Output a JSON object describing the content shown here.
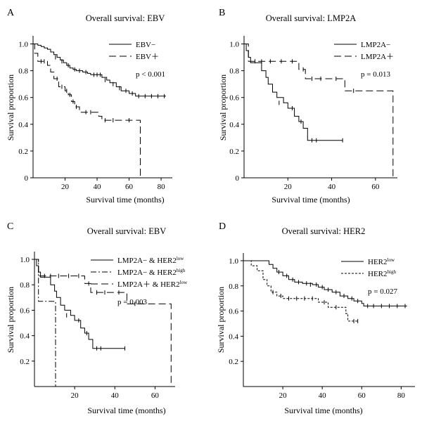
{
  "chart_data": [
    {
      "type": "line",
      "panel": "A",
      "title": "Overall survival: EBV",
      "xlabel": "Survival time (months)",
      "ylabel": "Survival proportion",
      "xlim": [
        0,
        87
      ],
      "ylim": [
        0,
        1.05
      ],
      "xticks": [
        "20",
        "40",
        "60",
        "80"
      ],
      "yticks": [
        "0",
        "0.2",
        "0.4",
        "0.6",
        "0.8",
        "1.0"
      ],
      "legend_position": "top-right",
      "annotation": "p < 0.001",
      "series": [
        {
          "name": "EBV−",
          "dash": "solid",
          "steps": [
            [
              0,
              1.0
            ],
            [
              3,
              0.99
            ],
            [
              5,
              0.98
            ],
            [
              7,
              0.97
            ],
            [
              9,
              0.96
            ],
            [
              11,
              0.94
            ],
            [
              13,
              0.92
            ],
            [
              15,
              0.9
            ],
            [
              17,
              0.88
            ],
            [
              19,
              0.86
            ],
            [
              21,
              0.84
            ],
            [
              23,
              0.82
            ],
            [
              25,
              0.81
            ],
            [
              27,
              0.8
            ],
            [
              31,
              0.79
            ],
            [
              34,
              0.78
            ],
            [
              36,
              0.77
            ],
            [
              43,
              0.75
            ],
            [
              46,
              0.73
            ],
            [
              48,
              0.71
            ],
            [
              52,
              0.68
            ],
            [
              55,
              0.65
            ],
            [
              60,
              0.63
            ],
            [
              64,
              0.61
            ],
            [
              83,
              0.61
            ]
          ],
          "censored": [
            [
              14,
              0.9
            ],
            [
              18,
              0.87
            ],
            [
              22,
              0.84
            ],
            [
              26,
              0.81
            ],
            [
              29,
              0.8
            ],
            [
              33,
              0.79
            ],
            [
              38,
              0.77
            ],
            [
              40,
              0.77
            ],
            [
              42,
              0.77
            ],
            [
              45,
              0.73
            ],
            [
              50,
              0.7
            ],
            [
              54,
              0.67
            ],
            [
              58,
              0.65
            ],
            [
              62,
              0.63
            ],
            [
              66,
              0.61
            ],
            [
              70,
              0.61
            ],
            [
              74,
              0.61
            ],
            [
              78,
              0.61
            ],
            [
              82,
              0.61
            ]
          ]
        },
        {
          "name": "EBV＋",
          "dash": "dashed",
          "steps": [
            [
              0,
              1.0
            ],
            [
              1,
              0.93
            ],
            [
              3,
              0.87
            ],
            [
              9,
              0.84
            ],
            [
              11,
              0.79
            ],
            [
              13,
              0.74
            ],
            [
              16,
              0.68
            ],
            [
              20,
              0.65
            ],
            [
              22,
              0.62
            ],
            [
              24,
              0.57
            ],
            [
              26,
              0.53
            ],
            [
              29,
              0.49
            ],
            [
              41,
              0.46
            ],
            [
              43,
              0.43
            ],
            [
              66,
              0.43
            ],
            [
              67,
              0.0
            ]
          ],
          "censored": [
            [
              5,
              0.87
            ],
            [
              7,
              0.87
            ],
            [
              15,
              0.74
            ],
            [
              18,
              0.68
            ],
            [
              21,
              0.65
            ],
            [
              23,
              0.62
            ],
            [
              25,
              0.57
            ],
            [
              27,
              0.53
            ],
            [
              33,
              0.49
            ],
            [
              36,
              0.49
            ],
            [
              45,
              0.43
            ],
            [
              50,
              0.43
            ],
            [
              60,
              0.43
            ]
          ]
        }
      ]
    },
    {
      "type": "line",
      "panel": "B",
      "title": "Overall survival: LMP2A",
      "xlabel": "Survival time (months)",
      "ylabel": "Survival proportion",
      "xlim": [
        0,
        70
      ],
      "ylim": [
        0,
        1.05
      ],
      "xticks": [
        "20",
        "40",
        "60"
      ],
      "yticks": [
        "0",
        "0.2",
        "0.4",
        "0.6",
        "0.8",
        "1.0"
      ],
      "legend_position": "top-right",
      "annotation": "p = 0.013",
      "series": [
        {
          "name": "LMP2A−",
          "dash": "solid",
          "steps": [
            [
              0,
              1.0
            ],
            [
              1,
              0.95
            ],
            [
              2,
              0.9
            ],
            [
              3,
              0.86
            ],
            [
              8,
              0.8
            ],
            [
              10,
              0.75
            ],
            [
              11,
              0.7
            ],
            [
              13,
              0.64
            ],
            [
              15,
              0.6
            ],
            [
              18,
              0.56
            ],
            [
              20,
              0.52
            ],
            [
              23,
              0.46
            ],
            [
              25,
              0.42
            ],
            [
              27,
              0.37
            ],
            [
              29,
              0.28
            ],
            [
              45,
              0.28
            ]
          ],
          "censored": [
            [
              16,
              0.56
            ],
            [
              22,
              0.52
            ],
            [
              26,
              0.42
            ],
            [
              31,
              0.28
            ],
            [
              33,
              0.28
            ],
            [
              45,
              0.28
            ]
          ]
        },
        {
          "name": "LMP2A＋",
          "dash": "dashed",
          "steps": [
            [
              0,
              1.0
            ],
            [
              2,
              0.87
            ],
            [
              24,
              0.87
            ],
            [
              25,
              0.81
            ],
            [
              28,
              0.74
            ],
            [
              45,
              0.74
            ],
            [
              46,
              0.65
            ],
            [
              67,
              0.65
            ],
            [
              68,
              0.0
            ]
          ],
          "censored": [
            [
              5,
              0.87
            ],
            [
              8,
              0.87
            ],
            [
              12,
              0.87
            ],
            [
              17,
              0.87
            ],
            [
              22,
              0.87
            ],
            [
              27,
              0.81
            ],
            [
              31,
              0.74
            ],
            [
              35,
              0.74
            ],
            [
              42,
              0.74
            ],
            [
              50,
              0.65
            ]
          ]
        }
      ]
    },
    {
      "type": "line",
      "panel": "C",
      "title": "Overall survival: EBV",
      "xlabel": "Survival time (months)",
      "ylabel": "Survival proportion",
      "xlim": [
        0,
        70
      ],
      "ylim": [
        0,
        1.05
      ],
      "xticks": [
        "20",
        "40",
        "60"
      ],
      "yticks": [
        "0.2",
        "0.4",
        "0.6",
        "0.8",
        "1.0"
      ],
      "legend_position": "top-right",
      "annotation": "p = 0.003",
      "series": [
        {
          "name": "LMP2A− & HER2",
          "sup": "low",
          "dash": "solid",
          "steps": [
            [
              0,
              1.0
            ],
            [
              1,
              0.95
            ],
            [
              2,
              0.9
            ],
            [
              3,
              0.86
            ],
            [
              8,
              0.8
            ],
            [
              10,
              0.75
            ],
            [
              11,
              0.7
            ],
            [
              13,
              0.64
            ],
            [
              15,
              0.6
            ],
            [
              18,
              0.56
            ],
            [
              20,
              0.52
            ],
            [
              23,
              0.46
            ],
            [
              25,
              0.42
            ],
            [
              27,
              0.37
            ],
            [
              29,
              0.3
            ],
            [
              45,
              0.3
            ]
          ],
          "censored": [
            [
              16,
              0.56
            ],
            [
              22,
              0.52
            ],
            [
              26,
              0.42
            ],
            [
              31,
              0.3
            ],
            [
              33,
              0.3
            ],
            [
              45,
              0.3
            ]
          ]
        },
        {
          "name": "LMP2A− & HER2",
          "sup": "high",
          "dash": "dashdot",
          "steps": [
            [
              0,
              1.0
            ],
            [
              2,
              0.67
            ],
            [
              10,
              0.67
            ],
            [
              10.5,
              0.0
            ]
          ],
          "censored": []
        },
        {
          "name": "LMP2A＋ & HER2",
          "sup": "low",
          "dash": "dashed",
          "steps": [
            [
              0,
              1.0
            ],
            [
              2,
              0.87
            ],
            [
              24,
              0.87
            ],
            [
              25,
              0.81
            ],
            [
              28,
              0.74
            ],
            [
              45,
              0.74
            ],
            [
              46,
              0.65
            ],
            [
              67,
              0.65
            ],
            [
              68,
              0.0
            ]
          ],
          "censored": [
            [
              5,
              0.87
            ],
            [
              8,
              0.87
            ],
            [
              12,
              0.87
            ],
            [
              17,
              0.87
            ],
            [
              22,
              0.87
            ],
            [
              27,
              0.81
            ],
            [
              31,
              0.74
            ],
            [
              35,
              0.74
            ],
            [
              42,
              0.74
            ],
            [
              50,
              0.65
            ]
          ]
        }
      ]
    },
    {
      "type": "line",
      "panel": "D",
      "title": "Overall survival: HER2",
      "xlabel": "Survival time (months)",
      "ylabel": "Survival proportion",
      "xlim": [
        0,
        87
      ],
      "ylim": [
        0,
        1.05
      ],
      "xticks": [
        "20",
        "40",
        "60",
        "80"
      ],
      "yticks": [
        "0.2",
        "0.4",
        "0.6",
        "0.8",
        "1.0"
      ],
      "legend_position": "top-right",
      "annotation": "p = 0.027",
      "series": [
        {
          "name": "HER2",
          "sup": "low",
          "dash": "solid",
          "steps": [
            [
              0,
              1.0
            ],
            [
              12,
              1.0
            ],
            [
              13,
              0.97
            ],
            [
              15,
              0.94
            ],
            [
              17,
              0.91
            ],
            [
              20,
              0.88
            ],
            [
              23,
              0.85
            ],
            [
              26,
              0.83
            ],
            [
              30,
              0.82
            ],
            [
              35,
              0.81
            ],
            [
              38,
              0.79
            ],
            [
              41,
              0.77
            ],
            [
              45,
              0.75
            ],
            [
              49,
              0.72
            ],
            [
              53,
              0.7
            ],
            [
              56,
              0.68
            ],
            [
              60,
              0.66
            ],
            [
              61,
              0.64
            ],
            [
              83,
              0.64
            ]
          ],
          "censored": [
            [
              18,
              0.91
            ],
            [
              22,
              0.88
            ],
            [
              25,
              0.85
            ],
            [
              28,
              0.83
            ],
            [
              32,
              0.82
            ],
            [
              34,
              0.81
            ],
            [
              37,
              0.81
            ],
            [
              40,
              0.79
            ],
            [
              43,
              0.77
            ],
            [
              47,
              0.75
            ],
            [
              51,
              0.72
            ],
            [
              55,
              0.7
            ],
            [
              58,
              0.68
            ],
            [
              63,
              0.64
            ],
            [
              66,
              0.64
            ],
            [
              70,
              0.64
            ],
            [
              74,
              0.64
            ],
            [
              78,
              0.64
            ],
            [
              82,
              0.64
            ]
          ]
        },
        {
          "name": "HER2",
          "sup": "high",
          "dash": "dotted",
          "steps": [
            [
              0,
              1.0
            ],
            [
              4,
              0.96
            ],
            [
              7,
              0.92
            ],
            [
              10,
              0.85
            ],
            [
              12,
              0.8
            ],
            [
              14,
              0.75
            ],
            [
              17,
              0.72
            ],
            [
              20,
              0.7
            ],
            [
              38,
              0.67
            ],
            [
              43,
              0.63
            ],
            [
              52,
              0.58
            ],
            [
              53,
              0.52
            ],
            [
              58,
              0.52
            ]
          ],
          "censored": [
            [
              15,
              0.75
            ],
            [
              19,
              0.72
            ],
            [
              23,
              0.7
            ],
            [
              27,
              0.7
            ],
            [
              31,
              0.7
            ],
            [
              35,
              0.7
            ],
            [
              41,
              0.67
            ],
            [
              47,
              0.63
            ],
            [
              56,
              0.52
            ],
            [
              58,
              0.52
            ]
          ]
        }
      ]
    }
  ]
}
